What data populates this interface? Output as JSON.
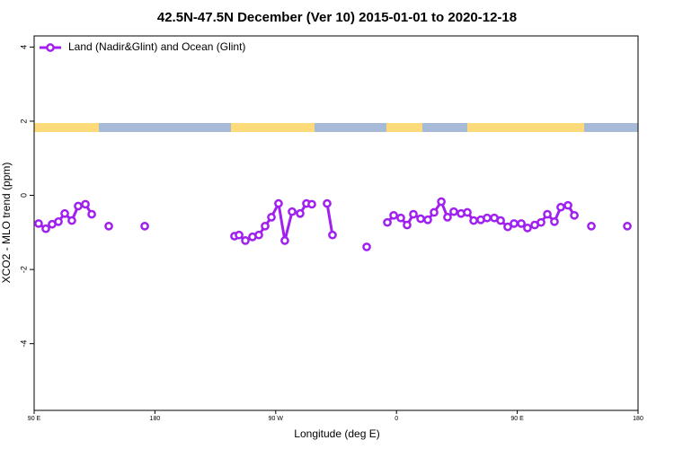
{
  "chart_data": {
    "type": "line",
    "title": "42.5N-47.5N December (Ver 10)   2015-01-01 to 2020-12-18",
    "x_label": "Longitude (deg E)",
    "y_label": "XCO2 - MLO trend (ppm)",
    "legend": "top-left",
    "xlim": [
      90,
      540
    ],
    "xticks": [
      {
        "value": 90,
        "label": "90 E"
      },
      180,
      {
        "value": 270,
        "label": "90 W"
      },
      {
        "value": 360,
        "label": "0"
      },
      {
        "value": 450,
        "label": "90 E"
      },
      {
        "value": 540,
        "label": "180"
      }
    ],
    "ylim": [
      -5.8,
      4.3
    ],
    "yticks": [
      4,
      2,
      0,
      -2,
      -4
    ],
    "x": [
      93.3,
      98.7,
      103.4,
      108.1,
      112.8,
      118.1,
      122.8,
      128.2,
      132.9,
      null,
      145.6,
      null,
      172.4,
      null,
      239.3,
      242.7,
      247.4,
      252.7,
      257.4,
      262.1,
      266.8,
      272.1,
      276.8,
      282.2,
      288.2,
      292.9,
      296.9,
      null,
      308.3,
      312.3,
      null,
      337.8,
      null,
      353.2,
      357.9,
      363.2,
      367.9,
      372.6,
      378.0,
      383.3,
      388.0,
      393.4,
      398.0,
      402.7,
      408.1,
      412.8,
      417.5,
      422.8,
      427.5,
      432.9,
      437.6,
      442.9,
      447.6,
      453.0,
      457.6,
      463.0,
      467.7,
      472.4,
      477.7,
      482.4,
      487.8,
      492.5,
      null,
      505.2,
      null,
      532.0
    ],
    "series": [
      {
        "name": "Land (Nadir&Glint) and Ocean (Glint)",
        "color": "#a020f0",
        "values": [
          -0.76,
          -0.9,
          -0.78,
          -0.71,
          -0.49,
          -0.68,
          -0.29,
          -0.24,
          -0.51,
          null,
          -0.83,
          null,
          -0.83,
          null,
          -1.1,
          -1.07,
          -1.22,
          -1.12,
          -1.07,
          -0.83,
          -0.59,
          -0.22,
          -1.22,
          -0.44,
          -0.49,
          -0.22,
          -0.24,
          null,
          -0.22,
          -1.07,
          null,
          -1.39,
          null,
          -0.73,
          -0.54,
          -0.61,
          -0.8,
          -0.51,
          -0.63,
          -0.66,
          -0.46,
          -0.17,
          -0.59,
          -0.44,
          -0.49,
          -0.46,
          -0.68,
          -0.66,
          -0.61,
          -0.61,
          -0.68,
          -0.85,
          -0.76,
          -0.76,
          -0.88,
          -0.8,
          -0.73,
          -0.51,
          -0.71,
          -0.32,
          -0.27,
          -0.54,
          null,
          -0.83,
          null,
          -0.83
        ]
      }
    ]
  }
}
